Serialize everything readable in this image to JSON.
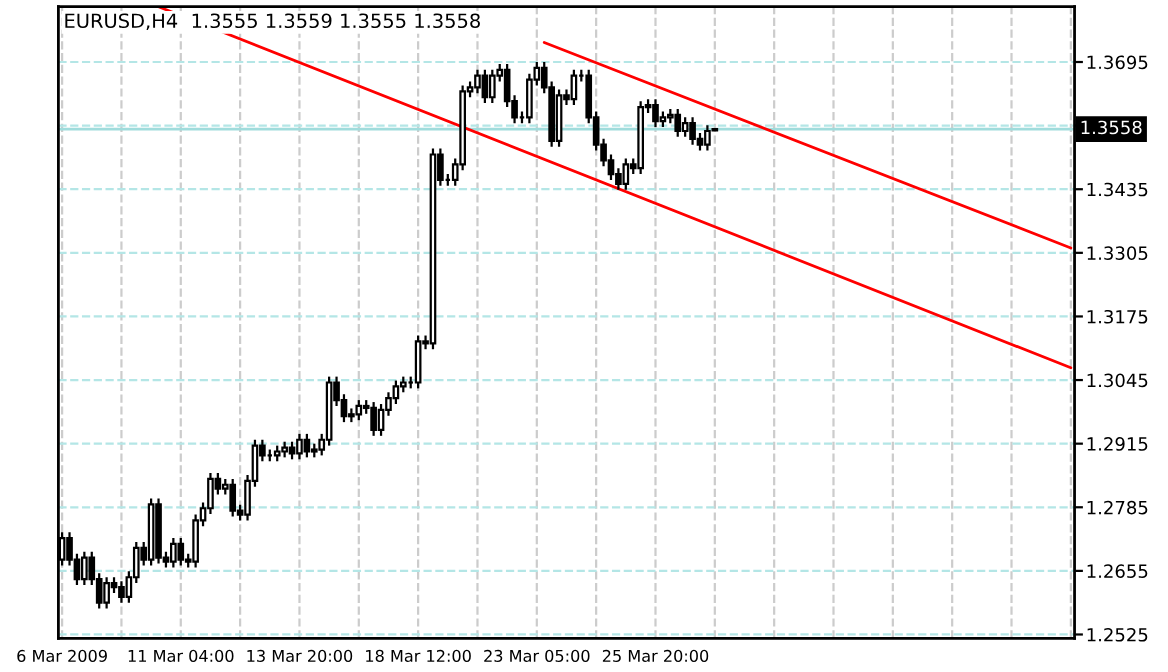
{
  "chart_data": {
    "type": "candlestick",
    "title": "EURUSD,H4  1.3555 1.3559 1.3555 1.3558",
    "categories": [
      "6 Mar 2009",
      null,
      null,
      null,
      null,
      null,
      null,
      null,
      null,
      null,
      null,
      null,
      null,
      null,
      null,
      null,
      "11 Mar 04:00",
      null,
      null,
      null,
      null,
      null,
      null,
      null,
      null,
      null,
      null,
      null,
      null,
      null,
      null,
      null,
      "13 Mar 20:00",
      null,
      null,
      null,
      null,
      null,
      null,
      null,
      null,
      null,
      null,
      null,
      null,
      null,
      null,
      null,
      "18 Mar 12:00",
      null,
      null,
      null,
      null,
      null,
      null,
      null,
      null,
      null,
      null,
      null,
      null,
      null,
      null,
      null,
      "23 Mar 05:00",
      null,
      null,
      null,
      null,
      null,
      null,
      null,
      null,
      null,
      null,
      null,
      null,
      null,
      null,
      null,
      "25 Mar 20:00",
      null,
      null,
      null,
      null,
      null,
      null,
      null,
      null,
      null,
      null,
      null,
      null,
      null,
      null,
      null,
      null,
      null,
      null,
      null,
      null,
      null,
      null,
      null,
      null,
      null,
      null,
      null,
      null,
      null,
      null,
      null,
      null,
      null,
      null,
      null,
      null,
      null,
      null,
      null,
      null,
      null,
      null,
      null,
      null,
      null,
      null,
      null,
      null,
      null,
      null,
      null,
      null,
      null,
      null,
      null,
      null
    ],
    "ohlc": [
      [
        1.2678,
        1.2734,
        1.2666,
        1.2722
      ],
      [
        1.2722,
        1.2734,
        1.2666,
        1.2678
      ],
      [
        1.2678,
        1.269,
        1.2626,
        1.2638
      ],
      [
        1.2638,
        1.2694,
        1.2626,
        1.2682
      ],
      [
        1.2682,
        1.2694,
        1.2626,
        1.2638
      ],
      [
        1.2638,
        1.265,
        1.2578,
        1.259
      ],
      [
        1.259,
        1.2642,
        1.2578,
        1.263
      ],
      [
        1.263,
        1.2642,
        1.261,
        1.2622
      ],
      [
        1.2622,
        1.2634,
        1.259,
        1.2602
      ],
      [
        1.2602,
        1.2654,
        1.259,
        1.2642
      ],
      [
        1.2642,
        1.2714,
        1.263,
        1.2702
      ],
      [
        1.2702,
        1.2714,
        1.2666,
        1.2678
      ],
      [
        1.2678,
        1.2803,
        1.2666,
        1.2791
      ],
      [
        1.2791,
        1.2803,
        1.267,
        1.2682
      ],
      [
        1.2682,
        1.2694,
        1.2662,
        1.2674
      ],
      [
        1.2674,
        1.2722,
        1.2662,
        1.271
      ],
      [
        1.271,
        1.2722,
        1.2666,
        1.2678
      ],
      [
        1.2678,
        1.269,
        1.2662,
        1.2674
      ],
      [
        1.2674,
        1.277,
        1.2662,
        1.2758
      ],
      [
        1.2758,
        1.2795,
        1.2746,
        1.2783
      ],
      [
        1.2783,
        1.2855,
        1.2771,
        1.2843
      ],
      [
        1.2843,
        1.2855,
        1.2811,
        1.2823
      ],
      [
        1.2823,
        1.2843,
        1.2811,
        1.2831
      ],
      [
        1.2831,
        1.2843,
        1.2766,
        1.2778
      ],
      [
        1.2778,
        1.279,
        1.2758,
        1.277
      ],
      [
        1.277,
        1.2851,
        1.2758,
        1.2839
      ],
      [
        1.2839,
        1.2923,
        1.2827,
        1.2911
      ],
      [
        1.2911,
        1.2923,
        1.2879,
        1.2891
      ],
      [
        1.2891,
        1.2903,
        1.2879,
        1.2891
      ],
      [
        1.2891,
        1.2911,
        1.2879,
        1.2899
      ],
      [
        1.2899,
        1.2919,
        1.2887,
        1.2907
      ],
      [
        1.2907,
        1.2919,
        1.2883,
        1.2895
      ],
      [
        1.2895,
        1.2935,
        1.2883,
        1.2923
      ],
      [
        1.2923,
        1.2935,
        1.2887,
        1.2899
      ],
      [
        1.2899,
        1.2915,
        1.2887,
        1.2903
      ],
      [
        1.2903,
        1.2935,
        1.2891,
        1.2923
      ],
      [
        1.2923,
        1.3052,
        1.2911,
        1.304
      ],
      [
        1.304,
        1.3052,
        1.2992,
        1.3004
      ],
      [
        1.3004,
        1.3016,
        1.2959,
        1.2971
      ],
      [
        1.2971,
        1.2987,
        1.2959,
        1.2975
      ],
      [
        1.2975,
        1.3004,
        1.2963,
        1.2992
      ],
      [
        1.2992,
        1.3004,
        1.2976,
        1.2988
      ],
      [
        1.2988,
        1.3,
        1.2931,
        1.2943
      ],
      [
        1.2943,
        1.2996,
        1.2931,
        1.2984
      ],
      [
        1.2984,
        1.302,
        1.2972,
        1.3008
      ],
      [
        1.3008,
        1.3044,
        1.2996,
        1.3032
      ],
      [
        1.3032,
        1.3052,
        1.302,
        1.304
      ],
      [
        1.304,
        1.3052,
        1.3028,
        1.304
      ],
      [
        1.304,
        1.3136,
        1.3028,
        1.3124
      ],
      [
        1.3124,
        1.3136,
        1.3108,
        1.312
      ],
      [
        1.312,
        1.3518,
        1.3108,
        1.3506
      ],
      [
        1.3506,
        1.3518,
        1.3442,
        1.3454
      ],
      [
        1.3454,
        1.3466,
        1.3442,
        1.3454
      ],
      [
        1.3454,
        1.3498,
        1.3442,
        1.3486
      ],
      [
        1.3486,
        1.3647,
        1.3474,
        1.3635
      ],
      [
        1.3635,
        1.3655,
        1.3623,
        1.3643
      ],
      [
        1.3643,
        1.3679,
        1.3631,
        1.3667
      ],
      [
        1.3667,
        1.3679,
        1.3611,
        1.3623
      ],
      [
        1.3623,
        1.3679,
        1.3611,
        1.3667
      ],
      [
        1.3667,
        1.3691,
        1.3655,
        1.3679
      ],
      [
        1.3679,
        1.3691,
        1.3603,
        1.3615
      ],
      [
        1.3615,
        1.3627,
        1.357,
        1.3582
      ],
      [
        1.3582,
        1.3594,
        1.357,
        1.3582
      ],
      [
        1.3582,
        1.3671,
        1.357,
        1.3659
      ],
      [
        1.3659,
        1.3695,
        1.3647,
        1.3683
      ],
      [
        1.3683,
        1.3695,
        1.3631,
        1.3643
      ],
      [
        1.3643,
        1.3655,
        1.3522,
        1.3534
      ],
      [
        1.3534,
        1.3639,
        1.3522,
        1.3627
      ],
      [
        1.3627,
        1.3639,
        1.3607,
        1.3619
      ],
      [
        1.3619,
        1.3679,
        1.3607,
        1.3667
      ],
      [
        1.3667,
        1.3679,
        1.3655,
        1.3667
      ],
      [
        1.3667,
        1.3679,
        1.357,
        1.3582
      ],
      [
        1.3582,
        1.3594,
        1.3514,
        1.3526
      ],
      [
        1.3526,
        1.3538,
        1.3482,
        1.3494
      ],
      [
        1.3494,
        1.3506,
        1.3454,
        1.3466
      ],
      [
        1.3466,
        1.3478,
        1.3434,
        1.3446
      ],
      [
        1.3446,
        1.3498,
        1.3434,
        1.3486
      ],
      [
        1.3486,
        1.3498,
        1.3466,
        1.3478
      ],
      [
        1.3478,
        1.3615,
        1.3466,
        1.3603
      ],
      [
        1.3603,
        1.3619,
        1.3591,
        1.3607
      ],
      [
        1.3607,
        1.3619,
        1.3562,
        1.3574
      ],
      [
        1.3574,
        1.3594,
        1.3562,
        1.3582
      ],
      [
        1.3582,
        1.3599,
        1.357,
        1.3587
      ],
      [
        1.3587,
        1.3599,
        1.3542,
        1.3554
      ],
      [
        1.3554,
        1.3582,
        1.3542,
        1.357
      ],
      [
        1.357,
        1.3582,
        1.3526,
        1.3538
      ],
      [
        1.3538,
        1.355,
        1.3514,
        1.3526
      ],
      [
        1.3526,
        1.3566,
        1.3514,
        1.3554
      ],
      [
        1.3555,
        1.3559,
        1.3555,
        1.3558
      ],
      null,
      null,
      null,
      null,
      null,
      null,
      null,
      null,
      null,
      null,
      null,
      null,
      null,
      null,
      null,
      null,
      null,
      null,
      null,
      null,
      null,
      null,
      null,
      null,
      null,
      null,
      null,
      null,
      null,
      null,
      null,
      null,
      null,
      null,
      null,
      null,
      null,
      null,
      null,
      null,
      null,
      null,
      null,
      null,
      null,
      null,
      null,
      null
    ],
    "series": [
      {
        "type": "line",
        "color": "#ff0000",
        "values": [
          null,
          null,
          null,
          null,
          null,
          null,
          null,
          null,
          null,
          null,
          null,
          null,
          null,
          1.3808,
          null,
          null,
          null,
          null,
          null,
          null,
          null,
          null,
          null,
          null,
          null,
          null,
          null,
          null,
          null,
          null,
          null,
          null,
          null,
          null,
          null,
          null,
          null,
          null,
          null,
          null,
          null,
          null,
          null,
          null,
          null,
          null,
          null,
          null,
          null,
          null,
          null,
          null,
          null,
          null,
          null,
          null,
          null,
          null,
          null,
          null,
          null,
          null,
          null,
          null,
          null,
          null,
          null,
          null,
          null,
          null,
          null,
          null,
          null,
          null,
          null,
          null,
          null,
          null,
          null,
          null,
          null,
          null,
          null,
          null,
          null,
          null,
          null,
          null,
          null,
          null,
          null,
          null,
          null,
          null,
          null,
          null,
          null,
          null,
          null,
          null,
          null,
          null,
          null,
          null,
          null,
          null,
          null,
          null,
          null,
          null,
          null,
          null,
          null,
          null,
          null,
          null,
          null,
          null,
          null,
          null,
          null,
          null,
          null,
          null,
          null,
          null,
          null,
          null,
          null,
          null,
          null,
          null,
          null,
          null,
          null,
          null,
          1.307
        ]
      },
      {
        "type": "line",
        "color": "#ff0000",
        "values": [
          null,
          null,
          null,
          null,
          null,
          null,
          null,
          null,
          null,
          null,
          null,
          null,
          null,
          null,
          null,
          null,
          null,
          null,
          null,
          null,
          null,
          null,
          null,
          null,
          null,
          null,
          null,
          null,
          null,
          null,
          null,
          null,
          null,
          null,
          null,
          null,
          null,
          null,
          null,
          null,
          null,
          null,
          null,
          null,
          null,
          null,
          null,
          null,
          null,
          null,
          null,
          null,
          null,
          null,
          null,
          null,
          null,
          null,
          null,
          null,
          null,
          null,
          null,
          null,
          null,
          1.3735,
          null,
          null,
          null,
          null,
          null,
          null,
          null,
          null,
          null,
          null,
          null,
          null,
          null,
          null,
          null,
          null,
          null,
          null,
          null,
          null,
          null,
          null,
          null,
          null,
          null,
          null,
          null,
          null,
          null,
          null,
          null,
          null,
          null,
          null,
          null,
          null,
          null,
          null,
          null,
          null,
          null,
          null,
          null,
          null,
          null,
          null,
          null,
          null,
          null,
          null,
          null,
          null,
          null,
          null,
          null,
          null,
          null,
          null,
          null,
          null,
          null,
          null,
          null,
          null,
          null,
          null,
          null,
          null,
          null,
          null,
          1.3315
        ]
      }
    ],
    "ylim": [
      1.2517,
      1.3808
    ],
    "yticks": [
      1.2525,
      1.2655,
      1.2785,
      1.2915,
      1.3045,
      1.3175,
      1.3305,
      1.3435,
      {
        "value": 1.3565,
        "label": null
      },
      1.3695
    ],
    "ref_lines": [
      {
        "axis": "y",
        "value": 1.3558,
        "label": "1.3558",
        "color": "#a0dcdc",
        "line_style": "solid"
      }
    ],
    "grid": true
  }
}
